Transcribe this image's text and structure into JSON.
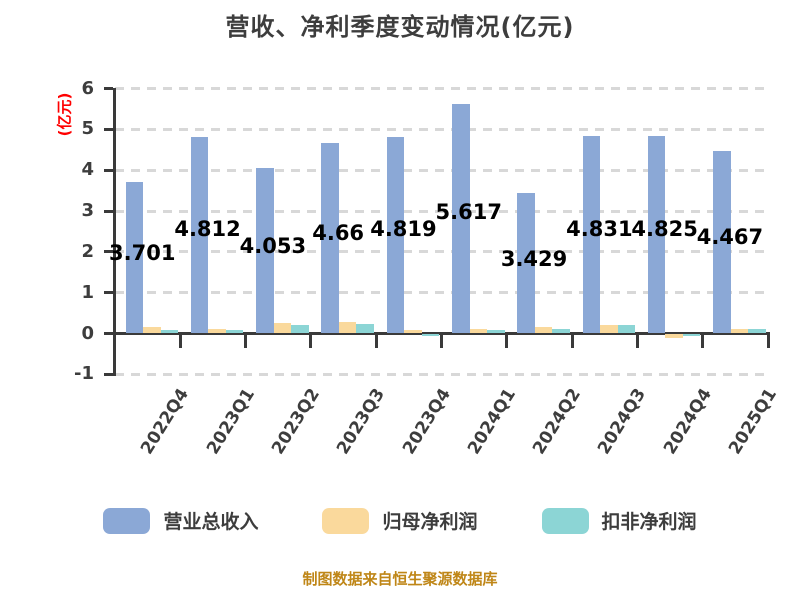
{
  "footer": {
    "text": "制图数据来自恒生聚源数据库",
    "color": "#BF8617"
  },
  "chart_data": {
    "type": "bar",
    "title": "营收、净利季度变动情况(亿元)",
    "xlabel": "",
    "ylabel": "(亿元)",
    "ylabel_color": "#FF0000",
    "ylim": [
      -1,
      6
    ],
    "yticks": [
      6,
      5,
      4,
      3,
      2,
      1,
      0,
      -1
    ],
    "gridlines": [
      6,
      5,
      4,
      3,
      2,
      1,
      -1
    ],
    "grid": "dashed",
    "legend_position": "bottom",
    "axis_color": "#3a3a3a",
    "grid_color": "#d8d8d8",
    "tick_label_color": "#3d3d3d",
    "categories": [
      "2022Q4",
      "2023Q1",
      "2023Q2",
      "2023Q3",
      "2023Q4",
      "2024Q1",
      "2024Q2",
      "2024Q3",
      "2024Q4",
      "2025Q1"
    ],
    "series": [
      {
        "name": "营业总收入",
        "color": "#8BA8D6",
        "values": [
          3.701,
          4.812,
          4.053,
          4.66,
          4.819,
          5.617,
          3.429,
          4.831,
          4.825,
          4.467
        ],
        "labels": [
          "3.701",
          "4.812",
          "4.053",
          "4.66",
          "4.819",
          "5.617",
          "3.429",
          "4.831",
          "4.825",
          "4.467"
        ]
      },
      {
        "name": "归母净利润",
        "color": "#FAD99C",
        "values": [
          0.16,
          0.1,
          0.25,
          0.27,
          0.09,
          0.1,
          0.16,
          0.2,
          -0.1,
          0.12
        ]
      },
      {
        "name": "扣非净利润",
        "color": "#8CD5D5",
        "values": [
          0.09,
          0.08,
          0.2,
          0.24,
          -0.06,
          0.08,
          0.12,
          0.21,
          -0.02,
          0.1
        ]
      }
    ]
  }
}
